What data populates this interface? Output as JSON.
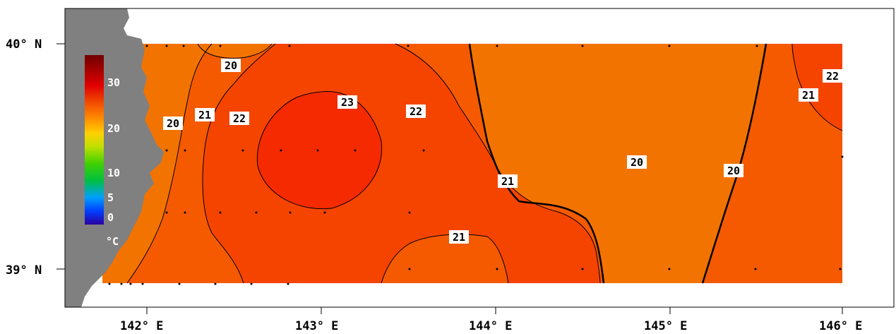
{
  "map": {
    "x_ticks": [
      "142° E",
      "143° E",
      "144° E",
      "145° E",
      "146° E"
    ],
    "y_ticks": [
      "40° N",
      "39° N"
    ],
    "colorbar": {
      "labels": [
        "30",
        "20",
        "10",
        "5",
        "0"
      ],
      "unit": "°C"
    },
    "contour_labels": [
      "20",
      "20",
      "21",
      "22",
      "23",
      "22",
      "21",
      "21",
      "20",
      "20",
      "21",
      "22"
    ],
    "colors": {
      "land": "#808080",
      "sst_20": "#f37300",
      "sst_21": "#f55a00",
      "sst_22": "#f54400",
      "sst_23": "#f52a00",
      "background": "#ffffff"
    }
  }
}
